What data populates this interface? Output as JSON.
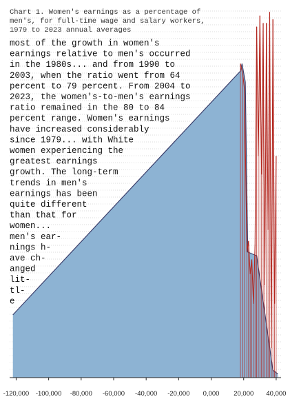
{
  "chart_data": {
    "type": "area",
    "title_lines": [
      "Chart 1. Women's earnings as a percentage of",
      "men's, for full-time wage and salary workers,",
      "1979 to 2023 annual averages"
    ],
    "body_lines": [
      "most of the growth in women's",
      "earnings relative to men's occurred",
      "in the 1980s... and from 1990 to",
      "2003, when the ratio went from 64",
      "percent to 79 percent. From 2004 to",
      "2023, the women's-to-men's earnings",
      "ratio remained in the 80 to 84",
      "percent range. Women's earnings",
      "have increased considerably",
      "since 1979... with White",
      "women experiencing the",
      "greatest earnings",
      "growth. The long-term",
      "trends in men's",
      "earnings has been",
      "quite different",
      "than that for",
      "women...",
      "men's ear-",
      "nings h-",
      "ave ch-",
      "anged",
      "lit-",
      "tl-",
      "e"
    ],
    "x_ticks": [
      {
        "value": -120000,
        "label": "-120,000"
      },
      {
        "value": -100000,
        "label": "-100,000"
      },
      {
        "value": -80000,
        "label": "-80,000"
      },
      {
        "value": -60000,
        "label": "-60,000"
      },
      {
        "value": -40000,
        "label": "-40,000"
      },
      {
        "value": -20000,
        "label": "-20,000"
      },
      {
        "value": 0,
        "label": "0,000"
      },
      {
        "value": 20000,
        "label": "20,000"
      },
      {
        "value": 40000,
        "label": "40,000"
      }
    ],
    "xlim": [
      -124000,
      43000
    ],
    "ylim": [
      0,
      100
    ],
    "area_series": {
      "x": [
        -122000,
        18000,
        19000,
        21000,
        22500,
        28000,
        38000,
        41000
      ],
      "y": [
        17,
        83,
        85,
        80,
        34,
        33,
        2,
        1
      ]
    },
    "spike_series": {
      "x": [
        18000,
        19500,
        20500,
        22000,
        23000,
        24000,
        25000,
        26000,
        27000,
        28000,
        29000,
        30000,
        31000,
        32000,
        33000,
        34000,
        35000,
        36000,
        37000,
        38000,
        39000,
        40000
      ],
      "y": [
        85,
        82,
        78,
        34,
        37,
        28,
        32,
        20,
        36,
        95,
        60,
        98,
        55,
        96,
        25,
        96,
        40,
        99,
        8,
        97,
        20,
        60
      ]
    },
    "grid": true,
    "legend": "none",
    "colors": {
      "area_fill": "#8db3d3",
      "area_stroke": "#3a3f6b",
      "spike": "#b3261e",
      "grid": "#bdbdbd",
      "axis": "#222222"
    }
  }
}
